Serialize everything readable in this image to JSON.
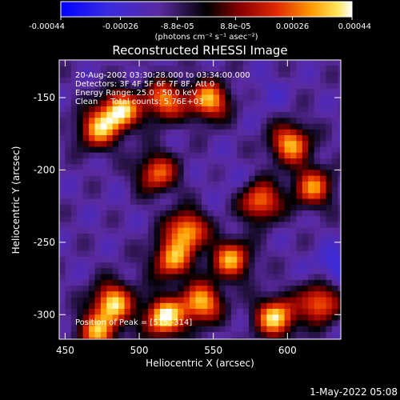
{
  "colorbar": {
    "tick_labels": [
      "-0.00044",
      "-0.00026",
      "-8.8e-05",
      "8.8e-05",
      "0.00026",
      "0.00044"
    ],
    "tick_values": [
      -0.00044,
      -0.00026,
      -8.8e-05,
      8.8e-05,
      0.00026,
      0.00044
    ],
    "range": [
      -0.00044,
      0.00044
    ],
    "units_text": "(photons cm⁻² s⁻¹ asec⁻²)"
  },
  "title": "Reconstructed RHESSI Image",
  "annotation": {
    "time_range": "20-Aug-2002 03:30:28.000 to 03:34:00.000",
    "detectors": "Detectors: 3F 4F 5F 6F 7F 8F, Att 0",
    "energy_range": "Energy Range: 25.0 - 50.0 keV",
    "algorithm_counts": "Clean     Total counts: 5.76E+03",
    "peak_position": "Position of Peak = [515,-314]"
  },
  "footer_timestamp": "1-May-2022 05:08",
  "chart_data": {
    "type": "heatmap",
    "title": "Reconstructed RHESSI Image",
    "xlabel": "Heliocentric X (arcsec)",
    "ylabel": "Heliocentric Y (arcsec)",
    "xlim": [
      446,
      636
    ],
    "ylim": [
      -317,
      -124
    ],
    "x_ticks": [
      450,
      500,
      550,
      600
    ],
    "x_tick_labels": [
      "450",
      "500",
      "550",
      "600"
    ],
    "y_ticks": [
      -150,
      -200,
      -250,
      -300
    ],
    "y_tick_labels": [
      "-150",
      "-200",
      "-250",
      "-300"
    ],
    "colormap": "idl-blue-purple-red-yellow-white",
    "color_range": [
      -0.00044,
      0.00044
    ],
    "peak": [
      515,
      -314
    ],
    "bright_regions": [
      {
        "x": 485,
        "y": -157,
        "level": 0.0004
      },
      {
        "x": 470,
        "y": -170,
        "level": 0.0003
      },
      {
        "x": 515,
        "y": -150,
        "level": 0.0003
      },
      {
        "x": 545,
        "y": -150,
        "level": 0.00035
      },
      {
        "x": 510,
        "y": -200,
        "level": 0.00026
      },
      {
        "x": 530,
        "y": -240,
        "level": 0.00035
      },
      {
        "x": 520,
        "y": -260,
        "level": 0.0003
      },
      {
        "x": 560,
        "y": -260,
        "level": 0.00032
      },
      {
        "x": 580,
        "y": -220,
        "level": 0.0003
      },
      {
        "x": 600,
        "y": -180,
        "level": 0.00034
      },
      {
        "x": 615,
        "y": -210,
        "level": 0.00028
      },
      {
        "x": 590,
        "y": -300,
        "level": 0.0004
      },
      {
        "x": 620,
        "y": -290,
        "level": 0.0003
      },
      {
        "x": 480,
        "y": -290,
        "level": 0.00038
      },
      {
        "x": 515,
        "y": -300,
        "level": 0.00044
      },
      {
        "x": 540,
        "y": -290,
        "level": 0.00036
      },
      {
        "x": 470,
        "y": -310,
        "level": 0.0003
      }
    ],
    "dim_regions": [
      {
        "x": 585,
        "y": -145,
        "level": -0.0002
      },
      {
        "x": 475,
        "y": -225,
        "level": -0.00015
      },
      {
        "x": 560,
        "y": -205,
        "level": -0.00018
      },
      {
        "x": 630,
        "y": -265,
        "level": -0.0003
      },
      {
        "x": 495,
        "y": -270,
        "level": -0.00012
      }
    ]
  }
}
